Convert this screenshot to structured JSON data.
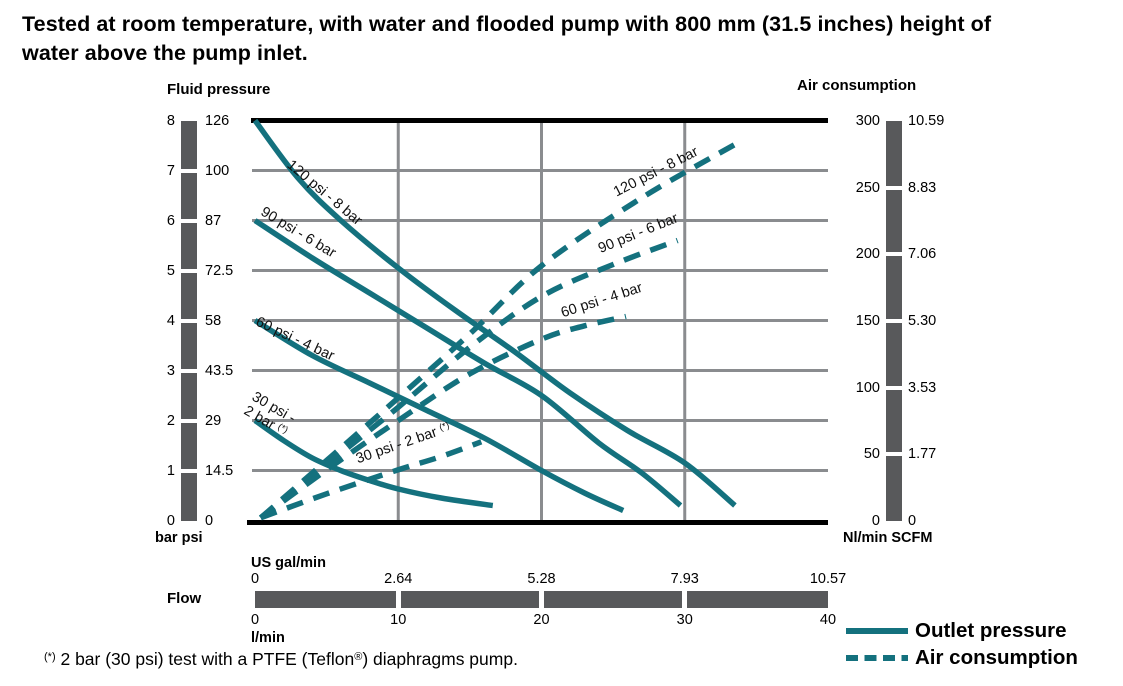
{
  "title_lines": [
    "Tested at room temperature, with water and flooded pump with 800 mm  (31.5 inches) height of",
    "water above the pump inlet."
  ],
  "fluid_pressure_axis": {
    "title": "Fluid pressure",
    "unit_labels": "bar psi",
    "bar_ticks": [
      "8",
      "7",
      "6",
      "5",
      "4",
      "3",
      "2",
      "1",
      "0"
    ],
    "psi_ticks": [
      "126",
      "100",
      "87",
      "72.5",
      "58",
      "43.5",
      "29",
      "14.5",
      "0"
    ]
  },
  "air_axis": {
    "title": "Air consumption",
    "unit_labels": "Nl/min SCFM",
    "nlmin_ticks": [
      "300",
      "250",
      "200",
      "150",
      "100",
      "50",
      "0"
    ],
    "scfm_ticks": [
      "10.59",
      "8.83",
      "7.06",
      "5.30",
      "3.53",
      "1.77",
      "0"
    ]
  },
  "flow_axis": {
    "title": "Flow",
    "gal_unit": "US gal/min",
    "gal_ticks": [
      "0",
      "2.64",
      "5.28",
      "7.93",
      "10.57"
    ],
    "lmin_unit": "l/min",
    "lmin_ticks": [
      "0",
      "10",
      "20",
      "30",
      "40"
    ]
  },
  "legend": [
    {
      "label": "Outlet pressure",
      "style": "solid"
    },
    {
      "label": "Air consumption",
      "style": "dashed"
    }
  ],
  "footnote": {
    "marker": "(*)",
    "part1": " 2 bar (30 psi) test with a PTFE (Teflon",
    "reg": "®",
    "part2": ") diaphragms pump."
  },
  "colors": {
    "curve": "#14717e",
    "axis_bar": "#58595b",
    "grid": "#8a8c8f",
    "border": "#000000"
  },
  "chart_data": {
    "type": "line",
    "x_axis": {
      "label": "Flow",
      "units": [
        "l/min",
        "US gal/min"
      ],
      "range_lmin": [
        0,
        40
      ],
      "range_gal": [
        0,
        10.57
      ]
    },
    "y_axis_left": {
      "label": "Fluid pressure",
      "units": [
        "bar",
        "psi"
      ],
      "range_bar": [
        0,
        8
      ],
      "range_psi": [
        0,
        126
      ]
    },
    "y_axis_right": {
      "label": "Air consumption",
      "units": [
        "Nl/min",
        "SCFM"
      ],
      "range_nlmin": [
        0,
        300
      ],
      "range_scfm": [
        0,
        10.59
      ]
    },
    "grid": {
      "vertical_at_lmin": [
        10,
        20,
        30
      ],
      "horizontal_at_bar": [
        1,
        2,
        3,
        4,
        5,
        6,
        7
      ]
    },
    "note_marker": "(*)",
    "series": [
      {
        "name": "outlet-pressure-120psi-8bar",
        "label": "120 psi - 8 bar",
        "style": "solid",
        "axis": "bar",
        "points": [
          [
            0,
            8
          ],
          [
            3,
            6.85
          ],
          [
            6,
            6.0
          ],
          [
            10,
            5.05
          ],
          [
            14,
            4.2
          ],
          [
            18,
            3.4
          ],
          [
            22,
            2.55
          ],
          [
            26,
            1.8
          ],
          [
            30,
            1.15
          ],
          [
            33.5,
            0.3
          ]
        ]
      },
      {
        "name": "outlet-pressure-90psi-6bar",
        "label": "90 psi - 6 bar",
        "style": "solid",
        "axis": "bar",
        "points": [
          [
            0,
            6
          ],
          [
            4,
            5.25
          ],
          [
            8,
            4.55
          ],
          [
            12,
            3.85
          ],
          [
            16,
            3.15
          ],
          [
            20,
            2.5
          ],
          [
            24,
            1.55
          ],
          [
            27,
            0.95
          ],
          [
            29.7,
            0.3
          ]
        ]
      },
      {
        "name": "outlet-pressure-60psi-4bar",
        "label": "60 psi - 4 bar",
        "style": "solid",
        "axis": "bar",
        "points": [
          [
            0,
            4
          ],
          [
            4,
            3.3
          ],
          [
            8,
            2.75
          ],
          [
            12,
            2.2
          ],
          [
            16,
            1.65
          ],
          [
            20,
            1.0
          ],
          [
            23,
            0.55
          ],
          [
            25.7,
            0.2
          ]
        ]
      },
      {
        "name": "outlet-pressure-30psi-2bar",
        "label": "30 psi - 2 bar (*)",
        "label_lines": [
          "30 psi -",
          "2 bar "
        ],
        "style": "solid",
        "axis": "bar",
        "points": [
          [
            0,
            2
          ],
          [
            2,
            1.6
          ],
          [
            4,
            1.25
          ],
          [
            6,
            1.0
          ],
          [
            8,
            0.8
          ],
          [
            10,
            0.63
          ],
          [
            13,
            0.45
          ],
          [
            16.6,
            0.3
          ]
        ]
      },
      {
        "name": "air-consumption-120psi-8bar",
        "label": "120 psi - 8 bar",
        "style": "dashed",
        "axis": "air",
        "points": [
          [
            0.4,
            2
          ],
          [
            5,
            45
          ],
          [
            10,
            92
          ],
          [
            15,
            140
          ],
          [
            20,
            191
          ],
          [
            27,
            242
          ],
          [
            34,
            285
          ]
        ]
      },
      {
        "name": "air-consumption-90psi-6bar",
        "label": "90 psi - 6 bar",
        "style": "dashed",
        "axis": "air",
        "points": [
          [
            0.4,
            2
          ],
          [
            5,
            42
          ],
          [
            10,
            85
          ],
          [
            15,
            130
          ],
          [
            20,
            168
          ],
          [
            25,
            192
          ],
          [
            29.5,
            210
          ]
        ]
      },
      {
        "name": "air-consumption-60psi-4bar",
        "label": "60 psi - 4 bar",
        "style": "dashed",
        "axis": "air",
        "points": [
          [
            0.4,
            2
          ],
          [
            5,
            38
          ],
          [
            10,
            75
          ],
          [
            15,
            110
          ],
          [
            20,
            136
          ],
          [
            23,
            146
          ],
          [
            25.9,
            153
          ]
        ]
      },
      {
        "name": "air-consumption-30psi-2bar",
        "label": "30 psi - 2 bar ",
        "style": "dashed",
        "axis": "air",
        "points": [
          [
            0.4,
            2
          ],
          [
            5,
            20
          ],
          [
            10,
            38
          ],
          [
            13,
            48
          ],
          [
            15.8,
            59
          ]
        ]
      }
    ]
  }
}
